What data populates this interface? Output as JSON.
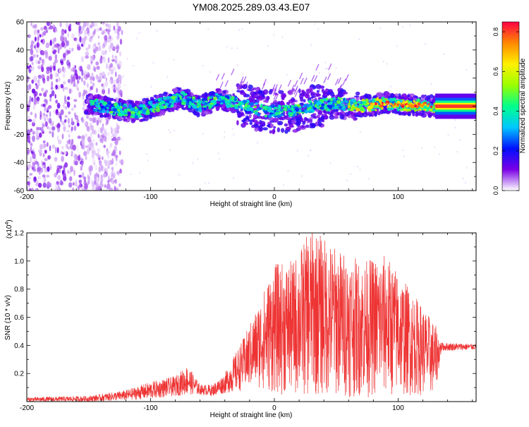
{
  "figure_title": "YM08.2025.289.03.43.E07",
  "chart_data": [
    {
      "type": "heatmap",
      "title": "YM08.2025.289.03.43.E07",
      "xlabel": "Height of straight line (km)",
      "ylabel": "Frequency (Hz)",
      "xlim": [
        -200,
        163
      ],
      "ylim": [
        -60,
        60
      ],
      "xticks": [
        -200,
        -100,
        0,
        100
      ],
      "yticks": [
        -60,
        -40,
        -20,
        0,
        20,
        40,
        60
      ],
      "grid": false,
      "colorbar": {
        "label": "Normalized spectral amplitude",
        "range": [
          0.0,
          0.85
        ],
        "ticks": [
          0.0,
          0.2,
          0.4,
          0.6,
          0.8
        ],
        "colormap": "rainbow",
        "colors": [
          "#ffffff",
          "#7a00e6",
          "#0010ff",
          "#00c8ff",
          "#00ff8c",
          "#9bff00",
          "#fff000",
          "#ff8800",
          "#ff0044"
        ]
      },
      "description_values": {
        "trace_center_hz": [
          {
            "x": -150,
            "y": 2
          },
          {
            "x": -130,
            "y": -2
          },
          {
            "x": -110,
            "y": -4
          },
          {
            "x": -90,
            "y": 2
          },
          {
            "x": -75,
            "y": 6
          },
          {
            "x": -60,
            "y": 0
          },
          {
            "x": -45,
            "y": 5
          },
          {
            "x": -30,
            "y": 2
          },
          {
            "x": -15,
            "y": -2
          },
          {
            "x": 0,
            "y": -4
          },
          {
            "x": 15,
            "y": -3
          },
          {
            "x": 30,
            "y": 0
          },
          {
            "x": 50,
            "y": 2
          },
          {
            "x": 70,
            "y": 0
          },
          {
            "x": 90,
            "y": 2
          },
          {
            "x": 110,
            "y": 1
          },
          {
            "x": 130,
            "y": 0
          },
          {
            "x": 163,
            "y": 0
          }
        ],
        "noise_region_x": [
          -200,
          -135
        ]
      }
    },
    {
      "type": "line",
      "xlabel": "Height of straight line (km)",
      "ylabel": "SNR (10 * v/v)",
      "scale_label": "(x10",
      "scale_exponent": "4",
      "xlim": [
        -200,
        163
      ],
      "ylim": [
        0,
        1.2
      ],
      "xticks": [
        -200,
        -100,
        0,
        100
      ],
      "yticks": [
        0.2,
        0.4,
        0.6,
        0.8,
        1.0,
        1.2
      ],
      "grid": false,
      "series": [
        {
          "name": "SNR",
          "color": "#ee3333",
          "envelope": [
            {
              "x": -200,
              "lo": 0.0,
              "hi": 0.03
            },
            {
              "x": -150,
              "lo": 0.0,
              "hi": 0.04
            },
            {
              "x": -120,
              "lo": 0.01,
              "hi": 0.08
            },
            {
              "x": -100,
              "lo": 0.02,
              "hi": 0.14
            },
            {
              "x": -80,
              "lo": 0.04,
              "hi": 0.18
            },
            {
              "x": -70,
              "lo": 0.05,
              "hi": 0.26
            },
            {
              "x": -60,
              "lo": 0.05,
              "hi": 0.12
            },
            {
              "x": -50,
              "lo": 0.04,
              "hi": 0.12
            },
            {
              "x": -40,
              "lo": 0.06,
              "hi": 0.2
            },
            {
              "x": -25,
              "lo": 0.08,
              "hi": 0.45
            },
            {
              "x": -15,
              "lo": 0.1,
              "hi": 0.65
            },
            {
              "x": 0,
              "lo": 0.05,
              "hi": 0.98
            },
            {
              "x": 15,
              "lo": 0.04,
              "hi": 1.0
            },
            {
              "x": 30,
              "lo": 0.03,
              "hi": 1.24
            },
            {
              "x": 50,
              "lo": 0.03,
              "hi": 1.1
            },
            {
              "x": 70,
              "lo": 0.03,
              "hi": 1.0
            },
            {
              "x": 90,
              "lo": 0.03,
              "hi": 1.05
            },
            {
              "x": 110,
              "lo": 0.04,
              "hi": 0.8
            },
            {
              "x": 130,
              "lo": 0.05,
              "hi": 0.55
            },
            {
              "x": 135,
              "lo": 0.36,
              "hi": 0.42
            },
            {
              "x": 163,
              "lo": 0.37,
              "hi": 0.41
            }
          ]
        }
      ]
    }
  ]
}
